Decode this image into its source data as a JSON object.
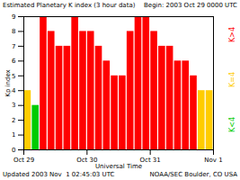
{
  "chart_data": {
    "type": "bar",
    "title": "Estimated Planetary K index (3 hour data)",
    "subtitle": "Begin: 2003 Oct 29 0000 UTC",
    "x_label": "Universal Time",
    "y_label": "Kp index",
    "x": [
      0,
      3,
      6,
      9,
      12,
      15,
      18,
      21,
      24,
      27,
      30,
      33,
      36,
      39,
      42,
      45,
      48,
      51,
      54,
      57,
      60,
      63,
      66,
      69
    ],
    "values": [
      4,
      3,
      9,
      8,
      7,
      7,
      9,
      8,
      8,
      7,
      6,
      5,
      5,
      8,
      9,
      9,
      8,
      7,
      7,
      6,
      6,
      5,
      4,
      4
    ],
    "colors": [
      "#ffcc00",
      "#00cc00",
      "#ff0000",
      "#ff0000",
      "#ff0000",
      "#ff0000",
      "#ff0000",
      "#ff0000",
      "#ff0000",
      "#ff0000",
      "#ff0000",
      "#ff0000",
      "#ff0000",
      "#ff0000",
      "#ff0000",
      "#ff0000",
      "#ff0000",
      "#ff0000",
      "#ff0000",
      "#ff0000",
      "#ff0000",
      "#ff0000",
      "#ffcc00",
      "#ffcc00"
    ],
    "xlim": [
      0,
      72
    ],
    "xticks": [
      {
        "value": 0,
        "label": "Oct 29"
      },
      {
        "value": 24,
        "label": "Oct 30"
      },
      {
        "value": 48,
        "label": "Oct 31"
      },
      {
        "value": 72,
        "label": "Nov 1"
      }
    ],
    "ylim": [
      0,
      9
    ],
    "yticks": [
      0,
      1,
      2,
      3,
      4,
      5,
      6,
      7,
      8,
      9
    ],
    "annotations": [
      {
        "text": "K>4",
        "color": "#ff0000"
      },
      {
        "text": "K=4",
        "color": "#ffcc00"
      },
      {
        "text": "K<4",
        "color": "#00cc00"
      }
    ],
    "footer_left": "Updated 2003 Nov  1 02:45:03 UTC",
    "footer_right": "NOAA/SEC Boulder, CO USA"
  }
}
